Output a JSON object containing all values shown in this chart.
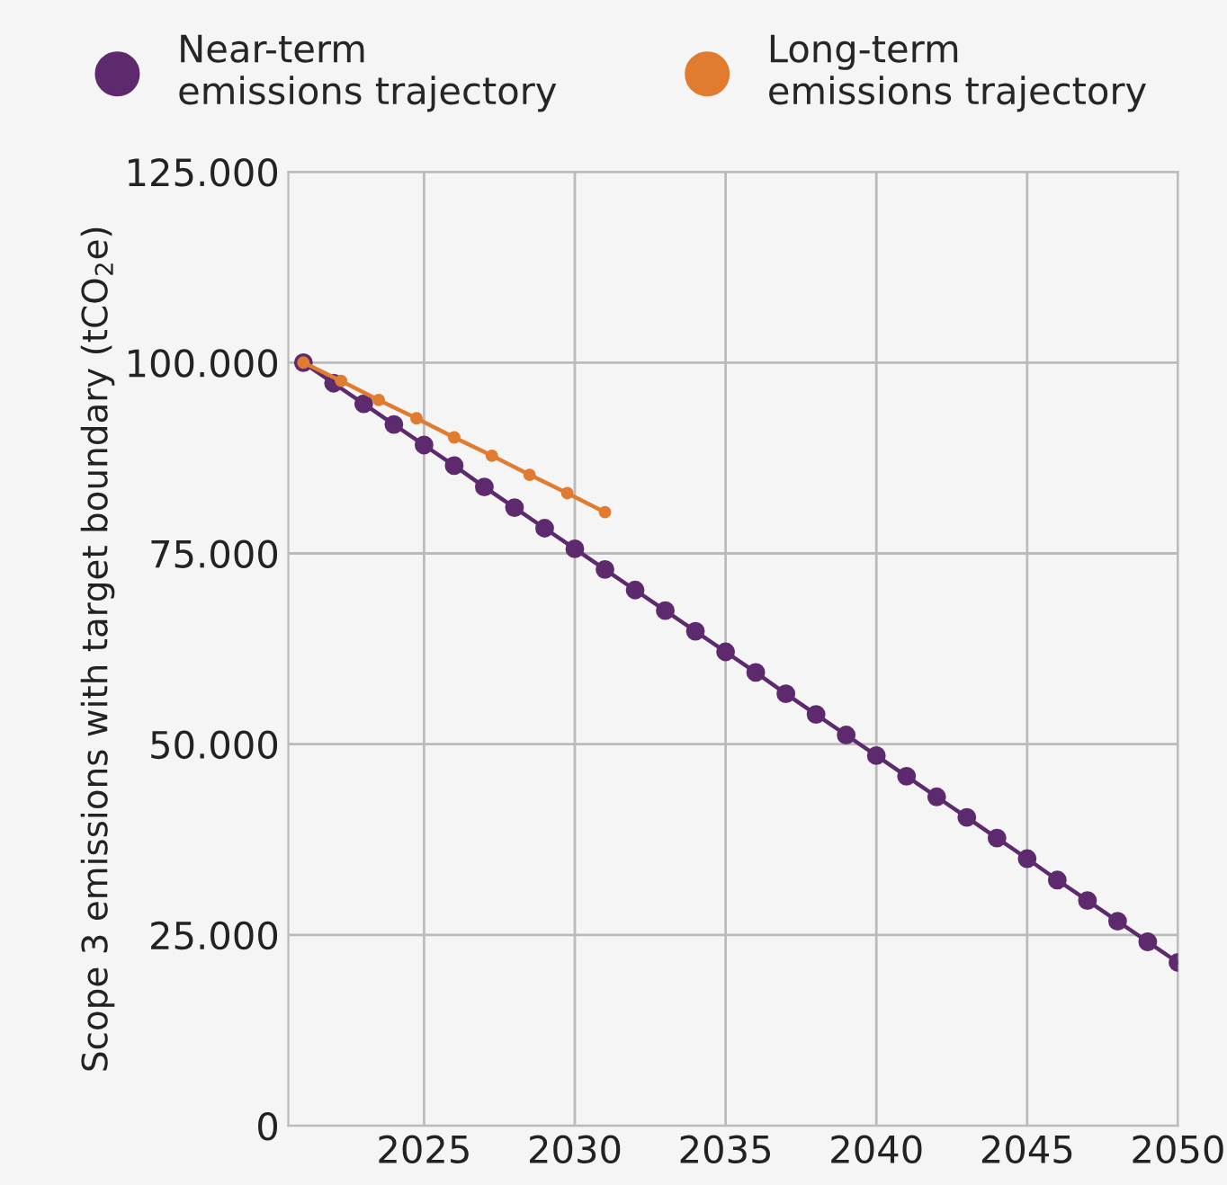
{
  "chart_data": {
    "type": "line",
    "ylabel": "Scope 3 emissions with target boundary (tCO$_{2}$e)",
    "xlim": [
      2020.5,
      2050
    ],
    "xticks": [
      2025,
      2030,
      2035,
      2040,
      2045,
      2050
    ],
    "ylim": [
      0,
      125000
    ],
    "yticks": [
      0,
      {
        "value": 25000,
        "label": "25.000"
      },
      {
        "value": 50000,
        "label": "50.000"
      },
      {
        "value": 75000,
        "label": "75.000"
      },
      {
        "value": 100000,
        "label": "100.000"
      },
      {
        "value": 125000,
        "label": "125.000"
      }
    ],
    "grid": true,
    "legend": "top",
    "marker": "circle",
    "line_style": "solid",
    "series": [
      {
        "name": "Near-term\nemissions trajectory",
        "color": "#5e2a6e",
        "x": [
          2021,
          2022,
          2023,
          2024,
          2025,
          2026,
          2027,
          2028,
          2029,
          2030,
          2031,
          2032,
          2033,
          2034,
          2035,
          2036,
          2037,
          2038,
          2039,
          2040,
          2041,
          2042,
          2043,
          2044,
          2045,
          2046,
          2047,
          2048,
          2049,
          2050
        ],
        "values": [
          100000,
          97300,
          94600,
          91900,
          89200,
          86500,
          83700,
          81000,
          78300,
          75600,
          72900,
          70200,
          67500,
          64800,
          62100,
          59400,
          56600,
          53900,
          51200,
          48500,
          45800,
          43100,
          40400,
          37700,
          35000,
          32200,
          29500,
          26800,
          24100,
          21400
        ]
      },
      {
        "name": "Long-term\nemissions trajectory",
        "color": "#e07b30",
        "x": [
          2021,
          2022.25,
          2023.5,
          2024.75,
          2026,
          2027.25,
          2028.5,
          2029.75,
          2031
        ],
        "values": [
          100000,
          97600,
          95100,
          92700,
          90200,
          87800,
          85300,
          82900,
          80400
        ]
      }
    ]
  }
}
